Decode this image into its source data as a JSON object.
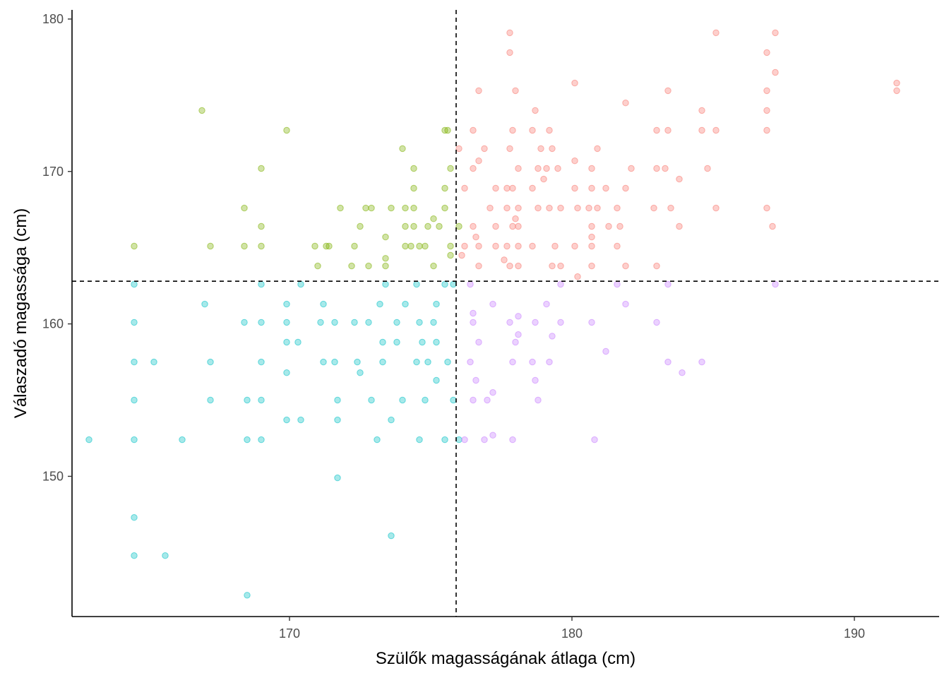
{
  "chart_data": {
    "type": "scatter",
    "xlabel": "Szülők magasságának átlaga (cm)",
    "ylabel": "Válaszadó magassága (cm)",
    "xlim": [
      162.3,
      193.0
    ],
    "ylim": [
      140.8,
      180.6
    ],
    "x_ticks": [
      170,
      180,
      190
    ],
    "y_ticks": [
      150,
      160,
      170,
      180
    ],
    "grid": false,
    "legend": "none",
    "reference_lines": {
      "x": 175.9,
      "y": 162.8
    },
    "colors": {
      "above_above": "#F8766D",
      "below_above": "#7CAE00",
      "below_below": "#00BFC4",
      "above_below": "#C77CFF"
    },
    "series": [
      {
        "color": "#F8766D",
        "points": [
          [
            177.8,
            179.1
          ],
          [
            185.1,
            179.1
          ],
          [
            187.2,
            179.1
          ],
          [
            177.8,
            177.8
          ],
          [
            186.9,
            177.8
          ],
          [
            187.2,
            176.5
          ],
          [
            180.1,
            175.8
          ],
          [
            191.5,
            175.8
          ],
          [
            191.5,
            175.3
          ],
          [
            176.7,
            175.3
          ],
          [
            178.0,
            175.3
          ],
          [
            183.4,
            175.3
          ],
          [
            186.9,
            175.3
          ],
          [
            181.9,
            174.5
          ],
          [
            178.7,
            174.0
          ],
          [
            184.6,
            174.0
          ],
          [
            186.9,
            174.0
          ],
          [
            176.5,
            172.7
          ],
          [
            177.9,
            172.7
          ],
          [
            178.6,
            172.7
          ],
          [
            179.2,
            172.7
          ],
          [
            183.0,
            172.7
          ],
          [
            183.4,
            172.7
          ],
          [
            184.6,
            172.7
          ],
          [
            185.1,
            172.7
          ],
          [
            186.9,
            172.7
          ],
          [
            176.0,
            171.5
          ],
          [
            176.9,
            171.5
          ],
          [
            177.8,
            171.5
          ],
          [
            178.9,
            171.5
          ],
          [
            179.3,
            171.5
          ],
          [
            180.9,
            171.5
          ],
          [
            176.7,
            170.7
          ],
          [
            180.1,
            170.7
          ],
          [
            176.5,
            170.2
          ],
          [
            178.1,
            170.2
          ],
          [
            178.8,
            170.2
          ],
          [
            179.1,
            170.2
          ],
          [
            179.5,
            170.2
          ],
          [
            180.7,
            170.2
          ],
          [
            182.1,
            170.2
          ],
          [
            183.0,
            170.2
          ],
          [
            183.3,
            170.2
          ],
          [
            184.8,
            170.2
          ],
          [
            179.0,
            169.5
          ],
          [
            183.8,
            169.5
          ],
          [
            176.2,
            168.9
          ],
          [
            177.3,
            168.9
          ],
          [
            177.7,
            168.9
          ],
          [
            177.9,
            168.9
          ],
          [
            178.6,
            168.9
          ],
          [
            180.1,
            168.9
          ],
          [
            181.2,
            168.9
          ],
          [
            181.9,
            168.9
          ],
          [
            180.7,
            168.9
          ],
          [
            177.1,
            167.6
          ],
          [
            177.7,
            167.6
          ],
          [
            178.1,
            167.6
          ],
          [
            178.8,
            167.6
          ],
          [
            179.2,
            167.6
          ],
          [
            179.6,
            167.6
          ],
          [
            180.2,
            167.6
          ],
          [
            180.6,
            167.6
          ],
          [
            180.9,
            167.6
          ],
          [
            181.6,
            167.6
          ],
          [
            182.9,
            167.6
          ],
          [
            183.5,
            167.6
          ],
          [
            185.1,
            167.6
          ],
          [
            186.9,
            167.6
          ],
          [
            176.5,
            166.4
          ],
          [
            177.3,
            166.4
          ],
          [
            177.9,
            166.4
          ],
          [
            178.1,
            166.4
          ],
          [
            180.7,
            166.4
          ],
          [
            181.3,
            166.4
          ],
          [
            181.7,
            166.4
          ],
          [
            183.8,
            166.4
          ],
          [
            187.1,
            166.4
          ],
          [
            176.6,
            165.7
          ],
          [
            178.0,
            166.9
          ],
          [
            180.7,
            165.7
          ],
          [
            176.2,
            165.1
          ],
          [
            176.7,
            165.1
          ],
          [
            177.3,
            165.1
          ],
          [
            177.7,
            165.1
          ],
          [
            178.1,
            165.1
          ],
          [
            178.6,
            165.1
          ],
          [
            179.4,
            165.1
          ],
          [
            180.1,
            165.1
          ],
          [
            180.7,
            165.1
          ],
          [
            181.6,
            165.1
          ],
          [
            176.7,
            163.8
          ],
          [
            177.8,
            163.8
          ],
          [
            178.1,
            163.8
          ],
          [
            179.3,
            163.8
          ],
          [
            179.6,
            163.8
          ],
          [
            180.7,
            163.8
          ],
          [
            181.9,
            163.8
          ],
          [
            183.0,
            163.8
          ],
          [
            176.1,
            164.5
          ],
          [
            177.6,
            164.2
          ],
          [
            180.2,
            163.1
          ]
        ]
      },
      {
        "color": "#7CAE00",
        "points": [
          [
            166.9,
            174.0
          ],
          [
            169.9,
            172.7
          ],
          [
            175.5,
            172.7
          ],
          [
            175.6,
            172.7
          ],
          [
            174.0,
            171.5
          ],
          [
            169.0,
            170.2
          ],
          [
            174.4,
            170.2
          ],
          [
            175.7,
            170.2
          ],
          [
            168.4,
            167.6
          ],
          [
            171.8,
            167.6
          ],
          [
            172.7,
            167.6
          ],
          [
            172.9,
            167.6
          ],
          [
            173.6,
            167.6
          ],
          [
            174.1,
            167.6
          ],
          [
            174.4,
            167.6
          ],
          [
            175.5,
            167.6
          ],
          [
            174.4,
            168.9
          ],
          [
            175.5,
            168.9
          ],
          [
            164.5,
            165.1
          ],
          [
            167.2,
            165.1
          ],
          [
            168.4,
            165.1
          ],
          [
            169.0,
            165.1
          ],
          [
            170.9,
            165.1
          ],
          [
            171.3,
            165.1
          ],
          [
            171.4,
            165.1
          ],
          [
            172.3,
            165.1
          ],
          [
            174.1,
            165.1
          ],
          [
            174.3,
            165.1
          ],
          [
            174.6,
            165.1
          ],
          [
            174.8,
            165.1
          ],
          [
            175.7,
            165.1
          ],
          [
            169.0,
            166.4
          ],
          [
            172.5,
            166.4
          ],
          [
            174.1,
            166.4
          ],
          [
            174.4,
            166.4
          ],
          [
            174.9,
            166.4
          ],
          [
            175.3,
            166.4
          ],
          [
            176.0,
            166.4
          ],
          [
            173.4,
            165.7
          ],
          [
            175.1,
            166.9
          ],
          [
            171.0,
            163.8
          ],
          [
            172.2,
            163.8
          ],
          [
            172.8,
            163.8
          ],
          [
            173.4,
            163.8
          ],
          [
            175.1,
            163.8
          ],
          [
            173.4,
            164.3
          ],
          [
            175.7,
            164.5
          ]
        ]
      },
      {
        "color": "#00BFC4",
        "points": [
          [
            164.5,
            162.6
          ],
          [
            169.0,
            162.6
          ],
          [
            170.4,
            162.6
          ],
          [
            173.4,
            162.6
          ],
          [
            174.5,
            162.6
          ],
          [
            175.5,
            162.6
          ],
          [
            175.8,
            162.6
          ],
          [
            167.0,
            161.3
          ],
          [
            169.9,
            161.3
          ],
          [
            171.2,
            161.3
          ],
          [
            173.2,
            161.3
          ],
          [
            174.1,
            161.3
          ],
          [
            175.2,
            161.3
          ],
          [
            164.5,
            160.1
          ],
          [
            168.4,
            160.1
          ],
          [
            169.0,
            160.1
          ],
          [
            169.9,
            160.1
          ],
          [
            171.1,
            160.1
          ],
          [
            171.6,
            160.1
          ],
          [
            172.3,
            160.1
          ],
          [
            172.8,
            160.1
          ],
          [
            173.8,
            160.1
          ],
          [
            174.6,
            160.1
          ],
          [
            175.1,
            160.1
          ],
          [
            169.9,
            158.8
          ],
          [
            170.3,
            158.8
          ],
          [
            173.3,
            158.8
          ],
          [
            173.8,
            158.8
          ],
          [
            174.7,
            158.8
          ],
          [
            175.2,
            158.8
          ],
          [
            164.5,
            157.5
          ],
          [
            165.2,
            157.5
          ],
          [
            167.2,
            157.5
          ],
          [
            169.0,
            157.5
          ],
          [
            171.2,
            157.5
          ],
          [
            171.6,
            157.5
          ],
          [
            172.4,
            157.5
          ],
          [
            173.3,
            157.5
          ],
          [
            174.5,
            157.5
          ],
          [
            174.9,
            157.5
          ],
          [
            175.6,
            157.5
          ],
          [
            169.9,
            156.8
          ],
          [
            172.5,
            156.8
          ],
          [
            175.2,
            156.3
          ],
          [
            164.5,
            155.0
          ],
          [
            167.2,
            155.0
          ],
          [
            168.5,
            155.0
          ],
          [
            169.0,
            155.0
          ],
          [
            171.7,
            155.0
          ],
          [
            172.9,
            155.0
          ],
          [
            174.0,
            155.0
          ],
          [
            174.8,
            155.0
          ],
          [
            175.8,
            155.0
          ],
          [
            169.9,
            153.7
          ],
          [
            170.4,
            153.7
          ],
          [
            171.7,
            153.7
          ],
          [
            173.6,
            153.7
          ],
          [
            162.9,
            152.4
          ],
          [
            164.5,
            152.4
          ],
          [
            166.2,
            152.4
          ],
          [
            168.5,
            152.4
          ],
          [
            169.0,
            152.4
          ],
          [
            173.1,
            152.4
          ],
          [
            174.6,
            152.4
          ],
          [
            175.5,
            152.4
          ],
          [
            176.0,
            152.4
          ],
          [
            171.7,
            149.9
          ],
          [
            164.5,
            147.3
          ],
          [
            173.6,
            146.1
          ],
          [
            164.5,
            144.8
          ],
          [
            165.6,
            144.8
          ],
          [
            168.5,
            142.2
          ]
        ]
      },
      {
        "color": "#C77CFF",
        "points": [
          [
            176.4,
            162.6
          ],
          [
            179.6,
            162.6
          ],
          [
            181.6,
            162.6
          ],
          [
            183.4,
            162.6
          ],
          [
            187.2,
            162.6
          ],
          [
            177.2,
            161.3
          ],
          [
            179.1,
            161.3
          ],
          [
            181.9,
            161.3
          ],
          [
            176.5,
            160.7
          ],
          [
            178.1,
            160.5
          ],
          [
            176.5,
            160.1
          ],
          [
            177.8,
            160.1
          ],
          [
            178.7,
            160.1
          ],
          [
            179.6,
            160.1
          ],
          [
            180.7,
            160.1
          ],
          [
            183.0,
            160.1
          ],
          [
            178.1,
            159.3
          ],
          [
            179.3,
            159.2
          ],
          [
            178.0,
            158.8
          ],
          [
            176.7,
            158.8
          ],
          [
            181.2,
            158.2
          ],
          [
            176.4,
            157.5
          ],
          [
            177.9,
            157.5
          ],
          [
            178.6,
            157.5
          ],
          [
            179.2,
            157.5
          ],
          [
            183.4,
            157.5
          ],
          [
            184.6,
            157.5
          ],
          [
            183.9,
            156.8
          ],
          [
            176.6,
            156.3
          ],
          [
            178.7,
            156.3
          ],
          [
            176.5,
            155.0
          ],
          [
            177.0,
            155.0
          ],
          [
            178.8,
            155.0
          ],
          [
            177.2,
            155.5
          ],
          [
            177.2,
            152.7
          ],
          [
            176.2,
            152.4
          ],
          [
            176.9,
            152.4
          ],
          [
            177.9,
            152.4
          ],
          [
            180.8,
            152.4
          ]
        ]
      }
    ]
  }
}
